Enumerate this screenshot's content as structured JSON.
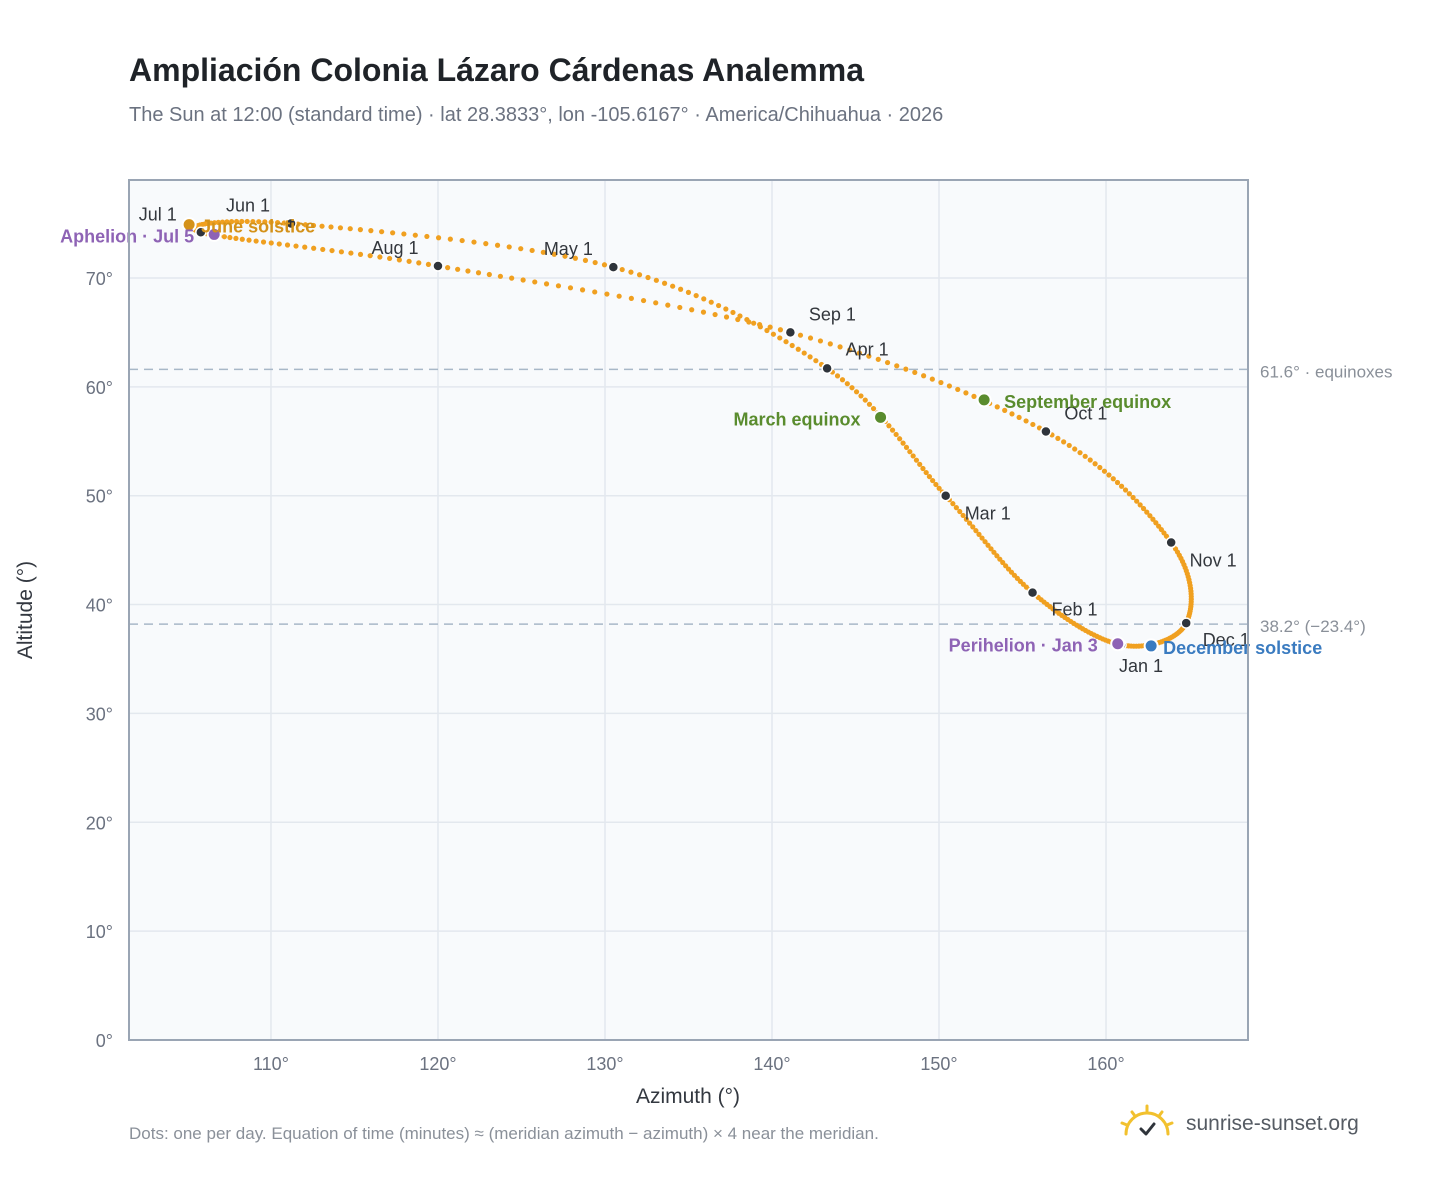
{
  "header": {
    "title": "Ampliación Colonia Lázaro Cárdenas Analemma",
    "subtitle": "The Sun at 12:00 (standard time) · lat 28.3833°, lon -105.6167° · America/Chihuahua · 2026"
  },
  "footer": {
    "note": "Dots: one per day. Equation of time (minutes) ≈ (meridian azimuth − azimuth) × 4 near the meridian.",
    "brand": "sunrise-sunset.org",
    "brand_icon": "sun-logo-icon"
  },
  "colors": {
    "curve": "#f0a020",
    "month_dot": "#2f343b",
    "solstice_june": "#d4921a",
    "solstice_december": "#3a7bc0",
    "equinox": "#5a8c2e",
    "apsis": "#8e63b5",
    "reference_line": "#a8b8c8",
    "plot_bg": "#f8fafc",
    "grid": "#e3e8ee",
    "frame": "#9aa5b4"
  },
  "chart_data": {
    "type": "scatter",
    "title": "Ampliación Colonia Lázaro Cárdenas Analemma",
    "xlabel": "Azimuth (°)",
    "ylabel": "Altitude (°)",
    "xlim": [
      101.5,
      168.5
    ],
    "ylim": [
      0,
      79
    ],
    "grid": true,
    "x_ticks": [
      110,
      120,
      130,
      140,
      150,
      160
    ],
    "x_tick_labels": [
      "110°",
      "120°",
      "130°",
      "140°",
      "150°",
      "160°"
    ],
    "y_ticks": [
      0,
      10,
      20,
      30,
      40,
      50,
      60,
      70
    ],
    "y_tick_labels": [
      "0°",
      "10°",
      "20°",
      "30°",
      "40°",
      "50°",
      "60°",
      "70°"
    ],
    "reference_lines": [
      {
        "altitude": 61.6,
        "label": "61.6° · equinoxes"
      },
      {
        "altitude": 38.2,
        "label": "38.2° (−23.4°)"
      }
    ],
    "month_points": [
      {
        "label": "Jan 1",
        "az": 160.9,
        "alt": 36.3
      },
      {
        "label": "Feb 1",
        "az": 155.6,
        "alt": 41.1
      },
      {
        "label": "Mar 1",
        "az": 150.4,
        "alt": 50.0
      },
      {
        "label": "Apr 1",
        "az": 143.3,
        "alt": 61.7
      },
      {
        "label": "May 1",
        "az": 130.5,
        "alt": 71.0
      },
      {
        "label": "Jun 1",
        "az": 111.2,
        "alt": 75.0
      },
      {
        "label": "Jul 1",
        "az": 105.8,
        "alt": 74.2
      },
      {
        "label": "Aug 1",
        "az": 120.0,
        "alt": 71.1
      },
      {
        "label": "Sep 1",
        "az": 141.1,
        "alt": 65.0
      },
      {
        "label": "Oct 1",
        "az": 156.4,
        "alt": 55.9
      },
      {
        "label": "Nov 1",
        "az": 163.9,
        "alt": 45.7
      },
      {
        "label": "Dec 1",
        "az": 164.8,
        "alt": 38.3
      }
    ],
    "events": [
      {
        "label": "June solstice",
        "az": 105.1,
        "alt": 74.9,
        "kind": "solstice_june"
      },
      {
        "label": "December solstice",
        "az": 162.7,
        "alt": 36.2,
        "kind": "solstice_december"
      },
      {
        "label": "March equinox",
        "az": 146.5,
        "alt": 57.2,
        "kind": "equinox"
      },
      {
        "label": "September equinox",
        "az": 152.7,
        "alt": 58.8,
        "kind": "equinox"
      },
      {
        "label": "Aphelion · Jul 5",
        "az": 106.6,
        "alt": 74.0,
        "kind": "apsis"
      },
      {
        "label": "Perihelion · Jan 3",
        "az": 160.7,
        "alt": 36.4,
        "kind": "apsis"
      }
    ]
  }
}
